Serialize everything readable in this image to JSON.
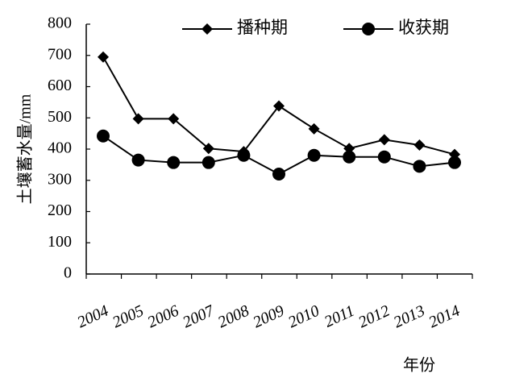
{
  "chart_data": {
    "type": "line",
    "title": "",
    "xlabel": "年份",
    "ylabel": "土壤蓄水量/mm",
    "ylim": [
      0,
      800
    ],
    "yticks": [
      0,
      100,
      200,
      300,
      400,
      500,
      600,
      700,
      800
    ],
    "grid": false,
    "legend_position": "top",
    "categories": [
      "2004",
      "2005",
      "2006",
      "2007",
      "2008",
      "2009",
      "2010",
      "2011",
      "2012",
      "2013",
      "2014"
    ],
    "series": [
      {
        "name": "播种期",
        "marker": "diamond",
        "color": "#000000",
        "values": [
          695,
          497,
          497,
          402,
          392,
          538,
          465,
          402,
          430,
          413,
          383
        ]
      },
      {
        "name": "收获期",
        "marker": "circle",
        "color": "#000000",
        "values": [
          442,
          365,
          357,
          357,
          380,
          320,
          380,
          375,
          375,
          345,
          357
        ]
      }
    ]
  }
}
